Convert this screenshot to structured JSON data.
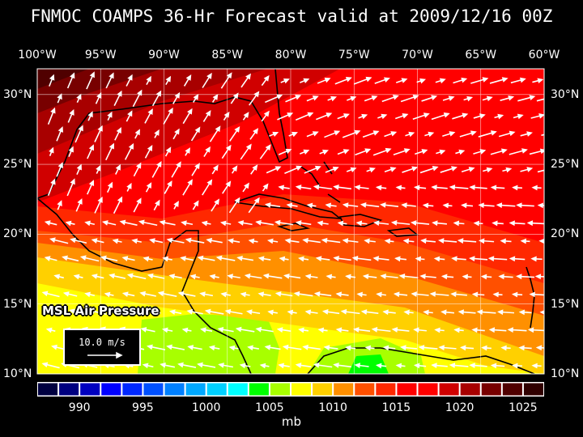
{
  "title": "FNMOC COAMPS 36-Hr Forecast valid at 2009/12/16 00Z",
  "map": {
    "field": "MSL Air Pressure",
    "longitude_labels": [
      "100°W",
      "95°W",
      "90°W",
      "85°W",
      "80°W",
      "75°W",
      "70°W",
      "65°W",
      "60°W"
    ],
    "latitude_labels": [
      "30°N",
      "25°N",
      "20°N",
      "15°N",
      "10°N"
    ],
    "vector_reference": "10.0 m/s",
    "region": "Gulf of Mexico and Caribbean"
  },
  "colorbar": {
    "unit": "mb",
    "labels": [
      "990",
      "995",
      "1000",
      "1005",
      "1010",
      "1015",
      "1020",
      "1025"
    ],
    "colors": [
      "#000040",
      "#000080",
      "#0000c0",
      "#0000ff",
      "#0028ff",
      "#0050ff",
      "#0080ff",
      "#00a8ff",
      "#00d0ff",
      "#00ffff",
      "#00ff00",
      "#a8ff00",
      "#ffff00",
      "#ffd000",
      "#ff9000",
      "#ff5000",
      "#ff2800",
      "#ff0000",
      "#ff0000",
      "#d00000",
      "#a80000",
      "#780000",
      "#500000",
      "#300000"
    ]
  }
}
